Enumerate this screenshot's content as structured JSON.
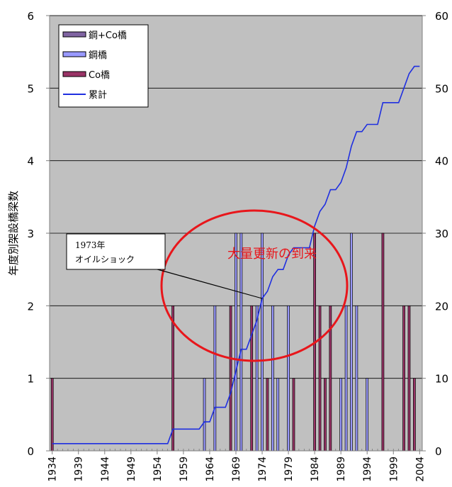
{
  "chart_data": {
    "type": "bar",
    "ylabel": "年度別架設橋梁数",
    "ylim": [
      0,
      6
    ],
    "y2lim": [
      0,
      60
    ],
    "yticks": [
      "0",
      "1",
      "2",
      "3",
      "4",
      "5",
      "6"
    ],
    "y2ticks": [
      "0",
      "10",
      "20",
      "30",
      "40",
      "50",
      "60"
    ],
    "xlim": [
      1934,
      2004
    ],
    "xtick_labels": [
      "1934",
      "1939",
      "1944",
      "1949",
      "1954",
      "1959",
      "1964",
      "1969",
      "1974",
      "1979",
      "1984",
      "1989",
      "1994",
      "1999",
      "2004"
    ],
    "grid": true,
    "legend_position": "top-left",
    "legend": [
      {
        "label": "鋼+Co橋",
        "color": "#8064a2",
        "kind": "box"
      },
      {
        "label": "鋼橋",
        "color": "#9999ff",
        "kind": "box"
      },
      {
        "label": "Co橋",
        "color": "#993366",
        "kind": "box"
      },
      {
        "label": "累計",
        "color": "#1f2fe0",
        "kind": "line"
      }
    ],
    "bars": [
      {
        "year": 1934,
        "value": 1,
        "type": "co"
      },
      {
        "year": 1957,
        "value": 2,
        "type": "co"
      },
      {
        "year": 1963,
        "value": 1,
        "type": "steel"
      },
      {
        "year": 1965,
        "value": 2,
        "type": "steel"
      },
      {
        "year": 1968,
        "value": 2,
        "type": "co"
      },
      {
        "year": 1969,
        "value": 3,
        "type": "steel"
      },
      {
        "year": 1970,
        "value": 3,
        "type": "steel"
      },
      {
        "year": 1972,
        "value": 2,
        "type": "co"
      },
      {
        "year": 1973,
        "value": 2,
        "type": "steel"
      },
      {
        "year": 1974,
        "value": 3,
        "type": "steel"
      },
      {
        "year": 1975,
        "value": 1,
        "type": "co"
      },
      {
        "year": 1976,
        "value": 2,
        "type": "steel"
      },
      {
        "year": 1977,
        "value": 1,
        "type": "steel"
      },
      {
        "year": 1979,
        "value": 2,
        "type": "steel"
      },
      {
        "year": 1980,
        "value": 1,
        "type": "co"
      },
      {
        "year": 1984,
        "value": 3,
        "type": "co"
      },
      {
        "year": 1985,
        "value": 2,
        "type": "co"
      },
      {
        "year": 1986,
        "value": 1,
        "type": "co"
      },
      {
        "year": 1987,
        "value": 2,
        "type": "co"
      },
      {
        "year": 1989,
        "value": 1,
        "type": "steel"
      },
      {
        "year": 1990,
        "value": 2,
        "type": "steel"
      },
      {
        "year": 1991,
        "value": 3,
        "type": "steel"
      },
      {
        "year": 1992,
        "value": 2,
        "type": "steel"
      },
      {
        "year": 1994,
        "value": 1,
        "type": "steel"
      },
      {
        "year": 1997,
        "value": 3,
        "type": "co"
      },
      {
        "year": 2001,
        "value": 2,
        "type": "co"
      },
      {
        "year": 2002,
        "value": 2,
        "type": "co"
      },
      {
        "year": 2003,
        "value": 1,
        "type": "co"
      }
    ],
    "cumulative": {
      "name": "累計",
      "points": [
        [
          1934,
          1
        ],
        [
          1956,
          1
        ],
        [
          1957,
          3
        ],
        [
          1962,
          3
        ],
        [
          1963,
          4
        ],
        [
          1964,
          4
        ],
        [
          1965,
          6
        ],
        [
          1967,
          6
        ],
        [
          1968,
          8
        ],
        [
          1969,
          11
        ],
        [
          1970,
          14
        ],
        [
          1971,
          14
        ],
        [
          1972,
          16
        ],
        [
          1973,
          18
        ],
        [
          1974,
          21
        ],
        [
          1975,
          22
        ],
        [
          1976,
          24
        ],
        [
          1977,
          25
        ],
        [
          1978,
          25
        ],
        [
          1979,
          27
        ],
        [
          1980,
          28
        ],
        [
          1983,
          28
        ],
        [
          1984,
          31
        ],
        [
          1985,
          33
        ],
        [
          1986,
          34
        ],
        [
          1987,
          36
        ],
        [
          1988,
          36
        ],
        [
          1989,
          37
        ],
        [
          1990,
          39
        ],
        [
          1991,
          42
        ],
        [
          1992,
          44
        ],
        [
          1993,
          44
        ],
        [
          1994,
          45
        ],
        [
          1996,
          45
        ],
        [
          1997,
          48
        ],
        [
          2000,
          48
        ],
        [
          2001,
          50
        ],
        [
          2002,
          52
        ],
        [
          2003,
          53
        ],
        [
          2004,
          53
        ]
      ]
    },
    "annotations": {
      "callout_line1": "1973年",
      "callout_line2": "オイルショック",
      "ellipse_text": "大量更新の到来"
    }
  }
}
